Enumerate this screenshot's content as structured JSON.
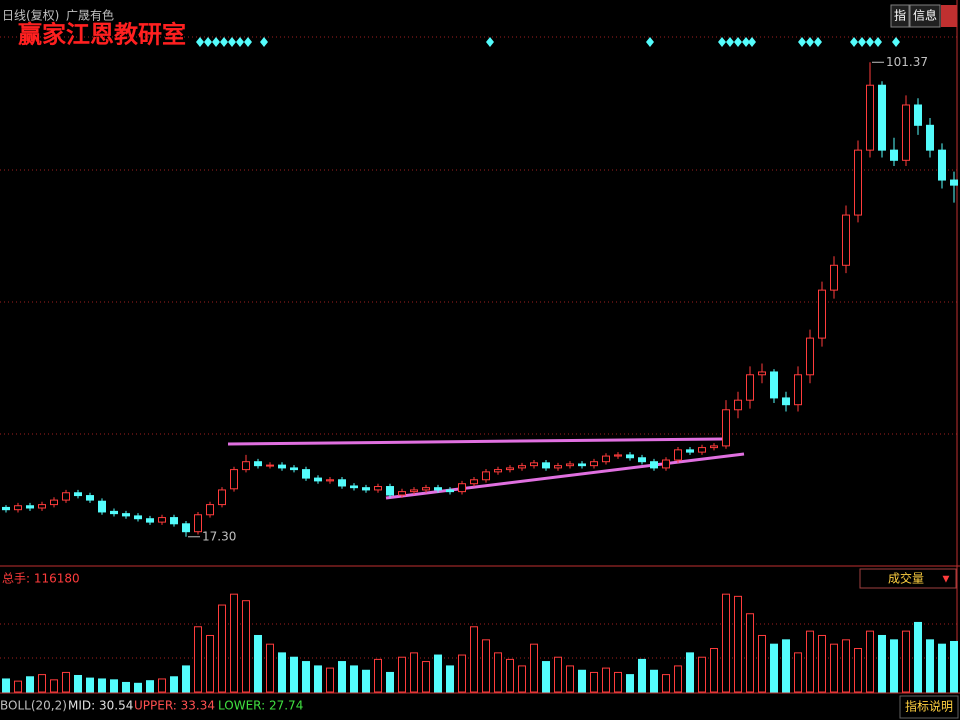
{
  "chart_data": {
    "type": "candlestick",
    "title": "日线(复权)",
    "subtitle": "广晟有色",
    "watermark": "赢家江恩教研室",
    "up_color": "#ff3c3c",
    "down_color": "#54fcfc",
    "ylim": [
      12.3,
      112.4
    ],
    "open": [
      22.5,
      22.1,
      22.8,
      22.4,
      23.0,
      23.8,
      25.1,
      24.6,
      23.6,
      21.8,
      21.4,
      21.0,
      20.5,
      19.9,
      20.7,
      19.6,
      18.2,
      21.2,
      23.0,
      25.8,
      29.2,
      30.6,
      29.9,
      30.0,
      29.5,
      29.2,
      27.7,
      27.2,
      27.4,
      26.3,
      26.0,
      25.6,
      26.2,
      24.7,
      25.3,
      25.6,
      26.0,
      25.6,
      25.3,
      26.7,
      27.4,
      28.8,
      29.2,
      29.5,
      29.9,
      30.4,
      29.5,
      29.9,
      30.2,
      29.9,
      30.6,
      31.6,
      31.8,
      31.3,
      30.6,
      29.5,
      30.9,
      32.7,
      32.3,
      33.1,
      33.4,
      39.8,
      41.5,
      46.0,
      46.5,
      41.9,
      40.7,
      46.0,
      52.5,
      61.0,
      65.4,
      74.3,
      85.8,
      97.3,
      85.8,
      84.0,
      93.8,
      90.2,
      85.8,
      80.5
    ],
    "high": [
      22.9,
      23.3,
      23.3,
      23.5,
      24.3,
      25.6,
      25.6,
      25.1,
      24.1,
      22.3,
      21.9,
      21.5,
      21.0,
      21.2,
      21.2,
      20.1,
      21.7,
      23.5,
      26.1,
      29.7,
      31.8,
      31.1,
      30.5,
      30.5,
      30.0,
      29.7,
      28.2,
      27.9,
      27.9,
      26.8,
      26.5,
      26.7,
      26.7,
      25.8,
      26.1,
      26.5,
      26.5,
      26.1,
      27.2,
      27.9,
      29.3,
      29.7,
      30.0,
      30.4,
      30.9,
      30.9,
      30.4,
      30.7,
      30.7,
      31.1,
      32.1,
      32.3,
      32.3,
      31.8,
      31.1,
      31.4,
      33.2,
      33.2,
      33.6,
      33.9,
      41.5,
      43.0,
      47.5,
      48.0,
      47.0,
      43.0,
      47.5,
      54.0,
      62.5,
      67.0,
      76.0,
      87.5,
      101.37,
      98.0,
      88.0,
      95.5,
      95.0,
      91.5,
      87.0,
      82.0
    ],
    "low": [
      21.6,
      21.6,
      21.9,
      21.9,
      22.5,
      23.3,
      24.1,
      23.3,
      21.2,
      20.9,
      20.5,
      20.0,
      19.4,
      19.4,
      19.1,
      17.3,
      17.7,
      20.7,
      22.5,
      25.3,
      28.7,
      29.4,
      29.4,
      29.0,
      28.7,
      27.2,
      26.7,
      26.7,
      25.8,
      25.5,
      25.1,
      25.1,
      24.2,
      24.2,
      24.8,
      25.1,
      25.1,
      24.8,
      24.8,
      26.2,
      26.9,
      28.3,
      28.7,
      29.0,
      29.4,
      29.0,
      29.0,
      29.4,
      29.4,
      29.4,
      30.1,
      31.1,
      30.8,
      30.1,
      29.0,
      29.0,
      30.4,
      31.8,
      31.8,
      32.6,
      32.9,
      38.3,
      40.0,
      44.5,
      41.0,
      39.5,
      39.5,
      44.5,
      51.0,
      59.5,
      64.0,
      73.0,
      84.5,
      84.5,
      83.0,
      83.0,
      88.5,
      84.5,
      79.0,
      76.5
    ],
    "close": [
      22.1,
      22.8,
      22.4,
      23.0,
      23.8,
      25.1,
      24.6,
      23.8,
      21.7,
      21.4,
      21.0,
      20.5,
      19.9,
      20.7,
      19.6,
      18.2,
      21.2,
      23.0,
      25.6,
      29.2,
      30.6,
      29.9,
      30.0,
      29.5,
      29.2,
      27.7,
      27.2,
      27.4,
      26.3,
      26.0,
      25.6,
      26.2,
      24.7,
      25.3,
      25.6,
      26.0,
      25.6,
      25.3,
      26.7,
      27.4,
      28.8,
      29.2,
      29.5,
      29.9,
      30.4,
      29.5,
      29.9,
      30.2,
      29.9,
      30.6,
      31.6,
      31.8,
      31.3,
      30.6,
      29.5,
      30.9,
      32.7,
      32.3,
      33.1,
      33.4,
      39.8,
      41.5,
      46.0,
      46.5,
      41.9,
      40.7,
      46.0,
      52.5,
      61.0,
      65.4,
      74.3,
      85.8,
      97.3,
      85.8,
      84.0,
      93.8,
      90.2,
      85.8,
      80.5,
      79.6
    ],
    "max_label": "101.37",
    "min_label": "17.30",
    "volume_label": "总手: 116180",
    "volume_title": "成交量",
    "volume_ylim": [
      0,
      230000
    ],
    "volume": [
      30000,
      25000,
      35000,
      40000,
      28000,
      45000,
      38000,
      32000,
      30000,
      28000,
      22000,
      20000,
      26000,
      30000,
      35000,
      60000,
      150000,
      130000,
      200000,
      225000,
      210000,
      130000,
      110000,
      90000,
      80000,
      70000,
      60000,
      55000,
      70000,
      60000,
      50000,
      75000,
      45000,
      80000,
      90000,
      70000,
      85000,
      60000,
      85000,
      150000,
      120000,
      90000,
      75000,
      60000,
      110000,
      70000,
      80000,
      60000,
      50000,
      45000,
      55000,
      45000,
      40000,
      75000,
      50000,
      40000,
      60000,
      90000,
      80000,
      100000,
      225000,
      220000,
      180000,
      130000,
      110000,
      120000,
      90000,
      140000,
      130000,
      110000,
      120000,
      100000,
      140000,
      130000,
      120000,
      140000,
      160000,
      120000,
      110000,
      116180
    ],
    "indicator": {
      "name": "BOLL(20,2)",
      "mid": "MID: 30.54",
      "upper": "UPPER: 33.34",
      "lower": "LOWER: 27.74"
    },
    "buttons": [
      "指",
      "信息"
    ],
    "help": "指标说明"
  }
}
